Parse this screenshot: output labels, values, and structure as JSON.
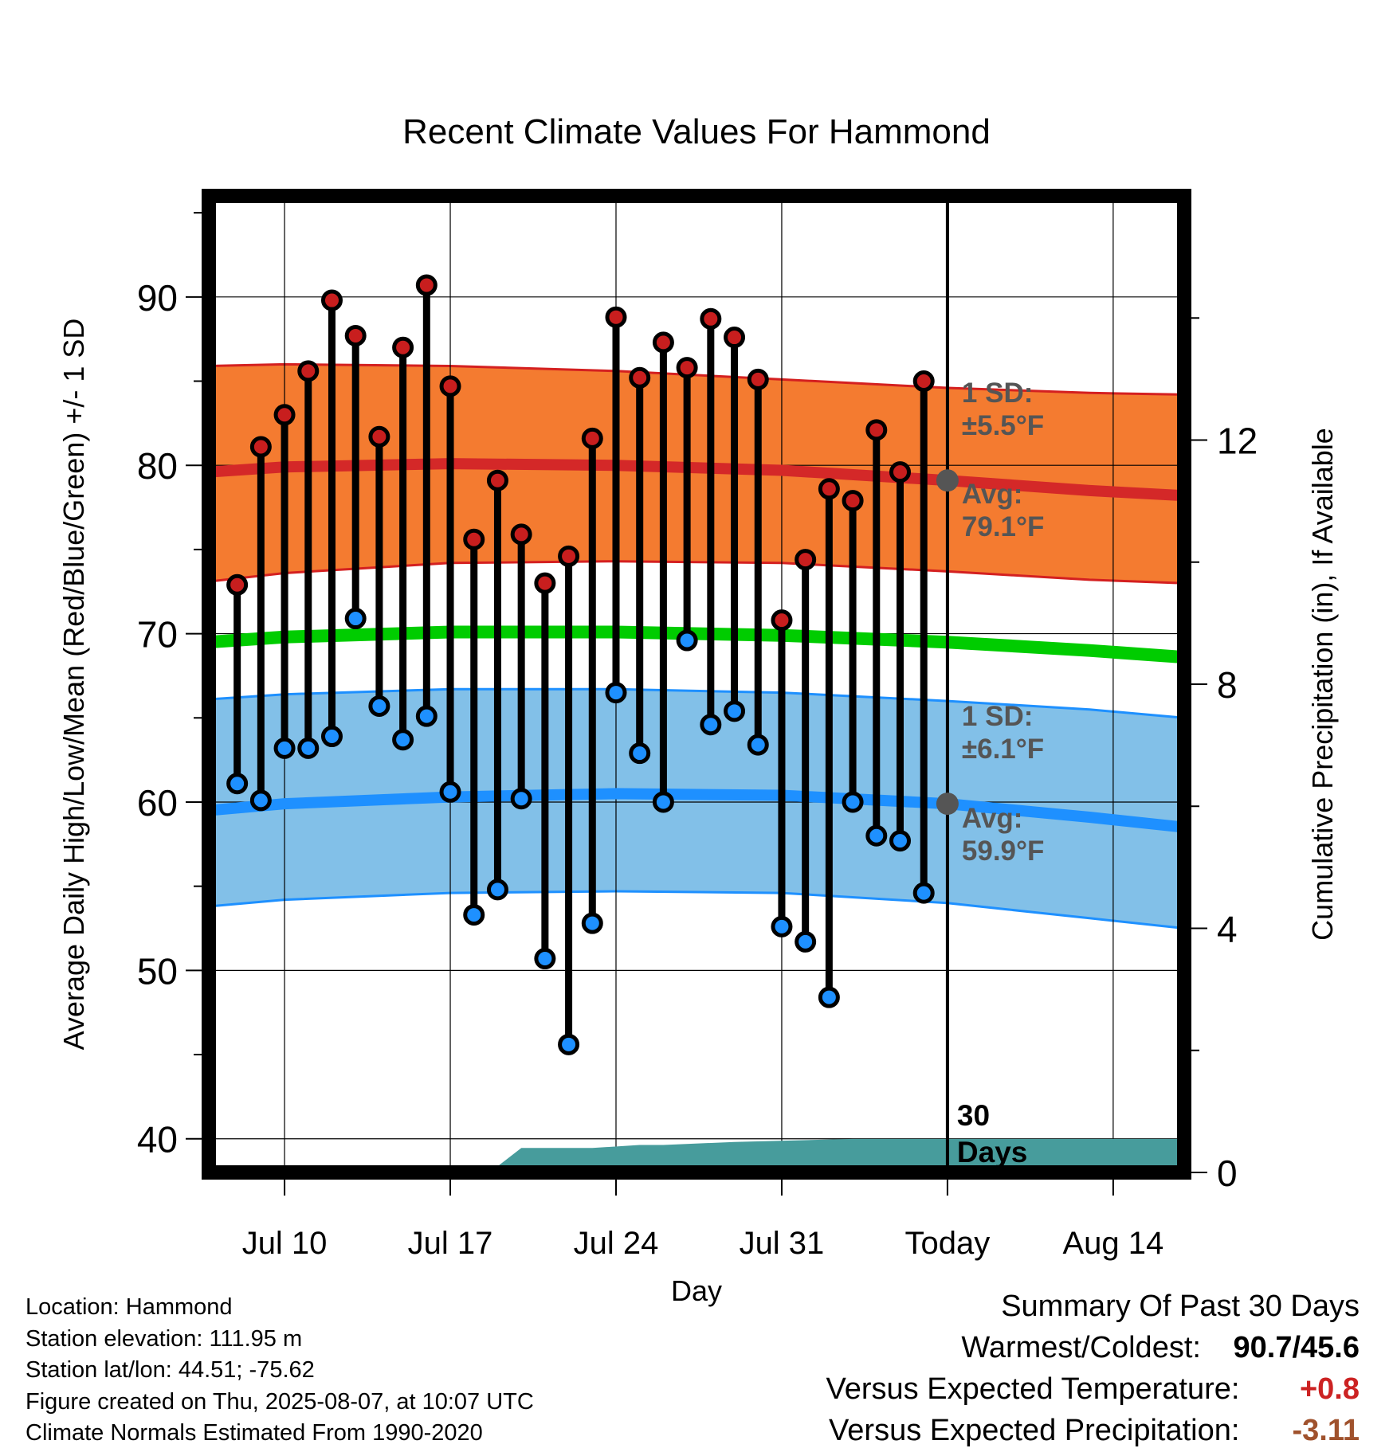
{
  "chart_data": {
    "type": "line",
    "title": "Recent Climate Values For Hammond",
    "xlabel": "Day",
    "ylabel_left": "Average Daily High/Low/Mean (Red/Blue/Green) +/- 1 SD",
    "ylabel_right": "Cumulative Precipitation (in), If Available",
    "y_ticks_left": [
      "40",
      "50",
      "60",
      "70",
      "80",
      "90"
    ],
    "y_ticks_right": [
      "0",
      "4",
      "8",
      "12"
    ],
    "ylim_left": [
      38,
      96
    ],
    "ylim_right": [
      0,
      16
    ],
    "x_ticks": [
      {
        "day": 10,
        "label": "Jul 10"
      },
      {
        "day": 17,
        "label": "Jul 17"
      },
      {
        "day": 24,
        "label": "Jul 24"
      },
      {
        "day": 31,
        "label": "Jul 31"
      },
      {
        "day": 38,
        "label": "Today"
      },
      {
        "day": 45,
        "label": "Aug 14"
      }
    ],
    "xlim_days_from_jul1": [
      6.8,
      48.0
    ],
    "today_day": 38,
    "window_label": "30 Days",
    "observations": {
      "days": [
        8,
        9,
        10,
        11,
        12,
        13,
        14,
        15,
        16,
        17,
        18,
        19,
        20,
        21,
        22,
        23,
        24,
        25,
        26,
        27,
        28,
        29,
        30,
        31,
        32,
        33,
        34,
        35,
        36,
        37
      ],
      "highs": [
        72.9,
        81.1,
        83.0,
        85.6,
        89.8,
        87.7,
        81.7,
        87.0,
        90.7,
        84.7,
        75.6,
        79.1,
        75.9,
        73.0,
        74.6,
        81.6,
        88.8,
        85.2,
        87.3,
        85.8,
        88.7,
        87.6,
        85.1,
        70.8,
        74.4,
        78.6,
        77.9,
        82.1,
        79.6,
        85.0
      ],
      "lows": [
        61.1,
        60.1,
        63.2,
        63.2,
        63.9,
        70.9,
        65.7,
        63.7,
        65.1,
        60.6,
        53.3,
        54.8,
        60.2,
        50.7,
        45.6,
        52.8,
        66.5,
        62.9,
        60.0,
        69.6,
        64.6,
        65.4,
        63.4,
        52.6,
        51.7,
        48.4,
        60.0,
        58.0,
        57.7,
        54.6
      ]
    },
    "normals": {
      "days": [
        6.8,
        10,
        17,
        24,
        31,
        38,
        44,
        48
      ],
      "high_mean": [
        79.6,
        79.9,
        80.1,
        80.0,
        79.7,
        79.1,
        78.5,
        78.2
      ],
      "high_upper": [
        85.9,
        86.0,
        85.9,
        85.6,
        85.1,
        84.6,
        84.3,
        84.2
      ],
      "high_lower": [
        73.1,
        73.6,
        74.2,
        74.3,
        74.2,
        73.7,
        73.2,
        73.0
      ],
      "mean": [
        69.5,
        69.8,
        70.1,
        70.1,
        69.9,
        69.5,
        69.0,
        68.6
      ],
      "low_mean": [
        59.5,
        59.9,
        60.3,
        60.5,
        60.4,
        59.9,
        59.1,
        58.5
      ],
      "low_upper": [
        66.1,
        66.4,
        66.7,
        66.7,
        66.5,
        66.0,
        65.5,
        65.0
      ],
      "low_lower": [
        53.8,
        54.2,
        54.6,
        54.7,
        54.6,
        54.0,
        53.1,
        52.5
      ]
    },
    "precip_cumulative": {
      "days": [
        17,
        19,
        20,
        22,
        23,
        25,
        26,
        29,
        34,
        38,
        48
      ],
      "values": [
        0.1,
        0.1,
        0.4,
        0.4,
        0.4,
        0.45,
        0.45,
        0.5,
        0.55,
        0.55,
        0.55
      ]
    },
    "annotations": {
      "high_sd_label": "1 SD:",
      "high_sd_value": "±5.5°F",
      "high_avg_label": "Avg:",
      "high_avg_value": "79.1°F",
      "low_sd_label": "1 SD:",
      "low_sd_value": "±6.1°F",
      "low_avg_label": "Avg:",
      "low_avg_value": "59.9°F",
      "high_avg_marker": 79.1,
      "low_avg_marker": 59.9
    },
    "colors": {
      "high_band": "#f47b30",
      "high_line": "#d42828",
      "high_edge": "#d42020",
      "mean_line": "#00cc00",
      "low_band": "#82c0e8",
      "low_line": "#1e90ff",
      "low_edge": "#1e90ff",
      "precip": "#479c9c",
      "high_dot": "#c81e1e",
      "low_dot": "#1e90ff",
      "annotation": "#555555"
    },
    "grid": true
  },
  "footer": {
    "location": "Location: Hammond",
    "elevation": "Station elevation: 111.95 m",
    "latlon": "Station lat/lon: 44.51; -75.62",
    "created": "Figure created on Thu, 2025-08-07, at 10:07 UTC",
    "normals": "Climate Normals Estimated From 1990-2020"
  },
  "summary": {
    "heading": "Summary Of Past 30 Days",
    "warm_cold_label": "Warmest/Coldest:",
    "warm_cold_value": "90.7/45.6",
    "temp_label": "Versus Expected Temperature:",
    "temp_value": "+0.8",
    "temp_color": "#cc2222",
    "precip_label": "Versus Expected Precipitation:",
    "precip_value": "-3.11",
    "precip_color": "#a0522d"
  }
}
